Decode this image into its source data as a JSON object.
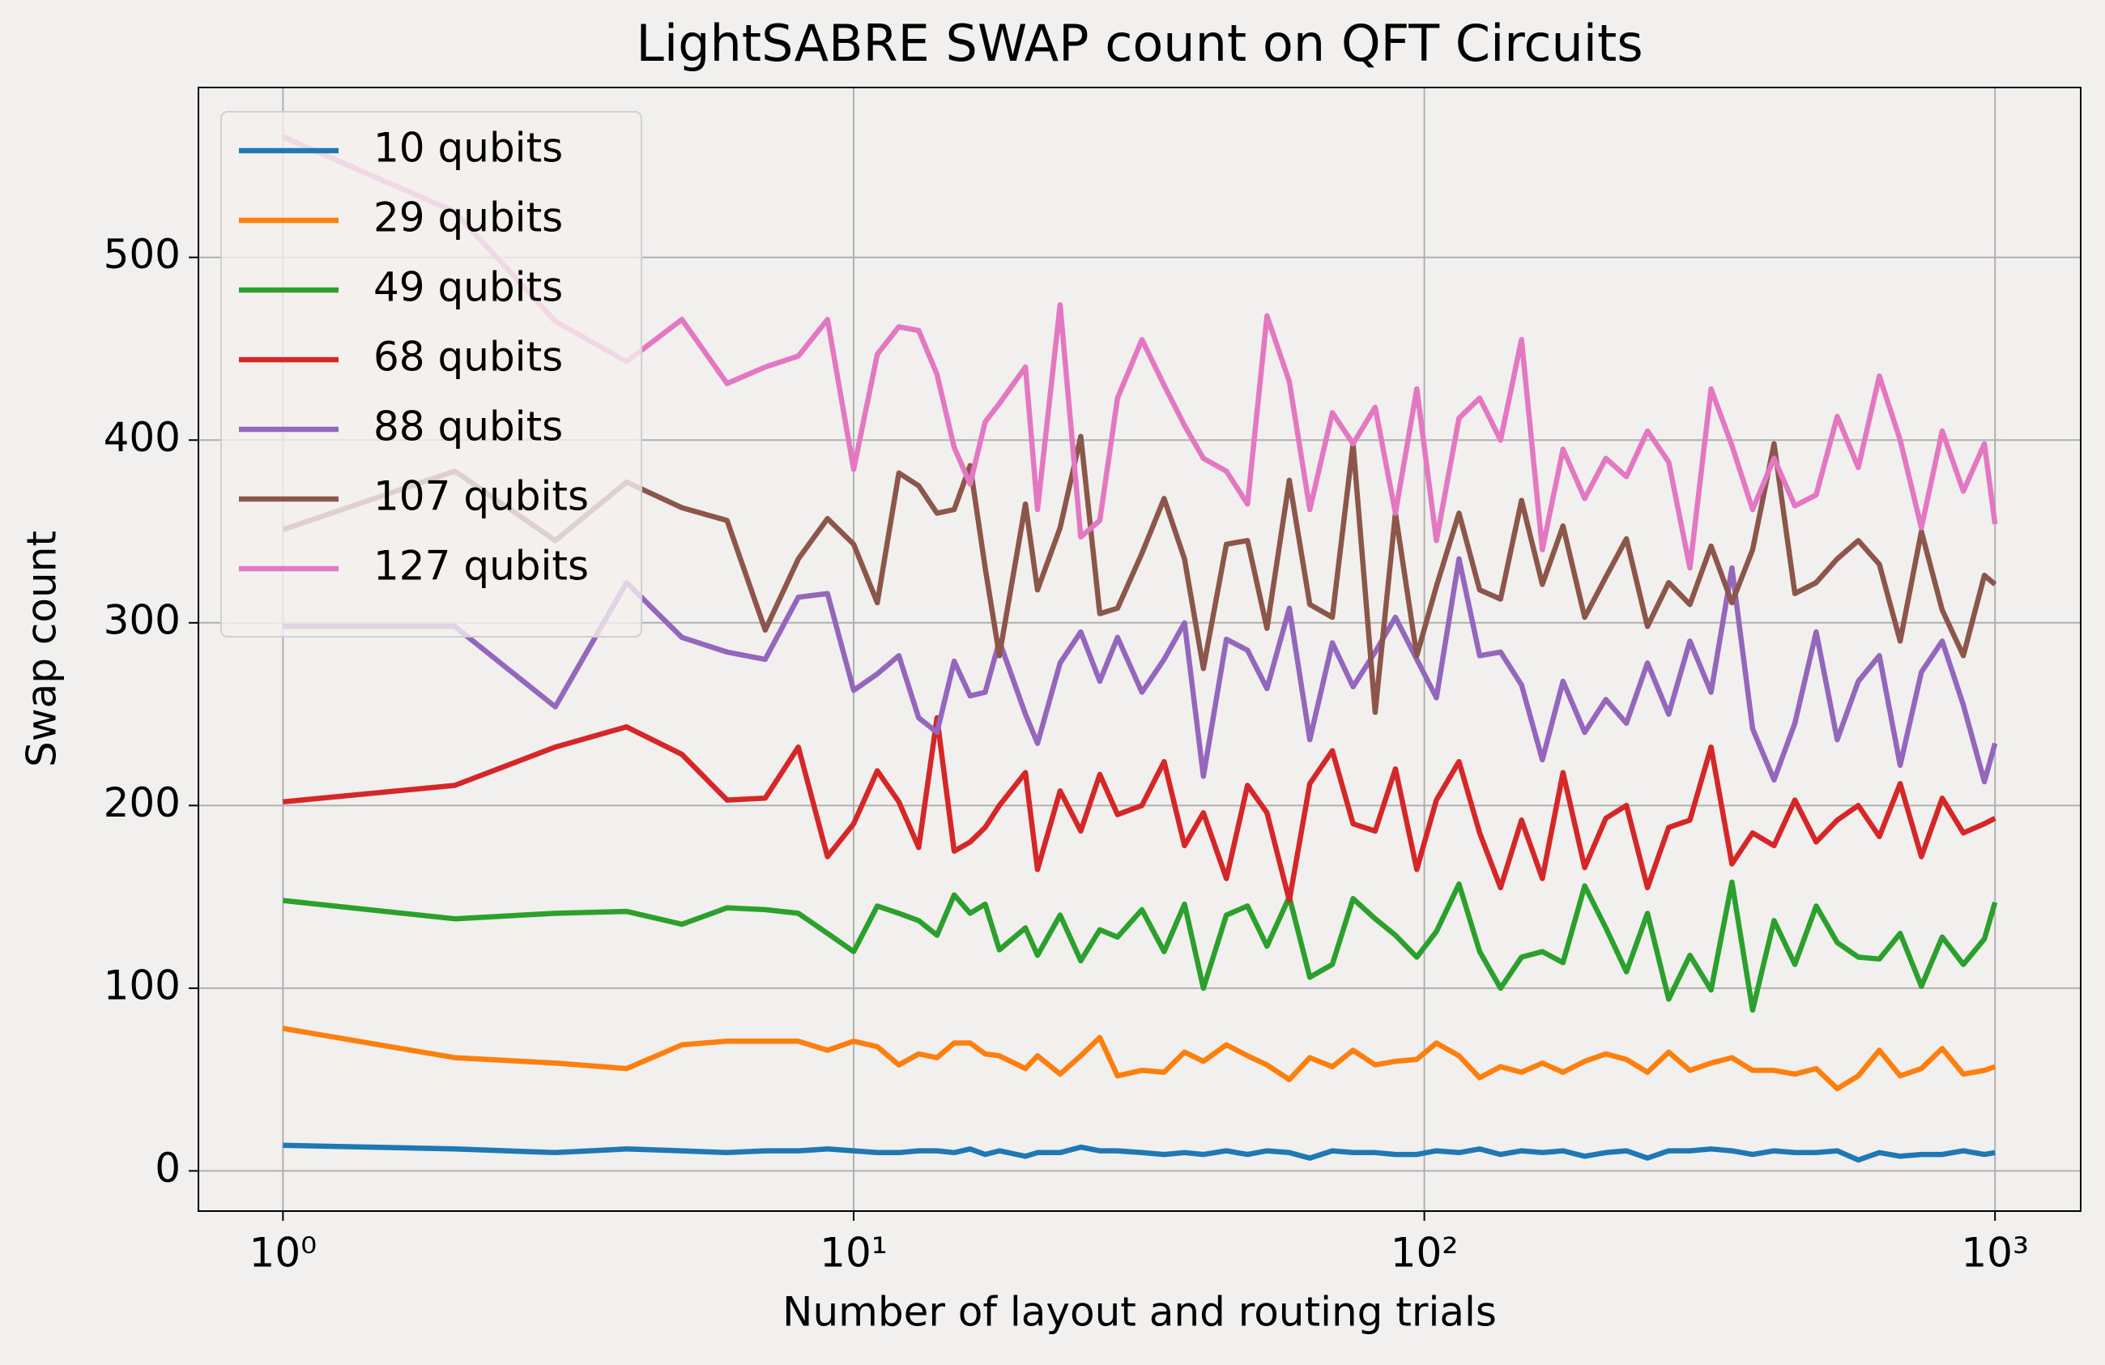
{
  "chart_data": {
    "type": "line",
    "title": "LightSABRE SWAP count on QFT Circuits",
    "x_label": "Number of layout and routing trials",
    "y_label": "Swap count",
    "x": [
      1,
      2,
      3,
      4,
      5,
      6,
      7,
      8,
      9,
      10,
      11,
      12,
      13,
      14,
      15,
      16,
      17,
      18,
      20,
      21,
      23,
      25,
      27,
      29,
      32,
      35,
      38,
      41,
      45,
      49,
      53,
      58,
      63,
      69,
      75,
      82,
      89,
      97,
      105,
      115,
      125,
      136,
      148,
      161,
      175,
      191,
      208,
      226,
      246,
      268,
      292,
      318,
      346,
      376,
      410,
      446,
      486,
      529,
      576,
      627,
      682,
      743,
      808,
      880,
      958,
      1000
    ],
    "series": [
      {
        "name": "10 qubits",
        "color": "#1f77b4",
        "values": [
          14,
          12,
          10,
          12,
          11,
          10,
          11,
          11,
          12,
          11,
          10,
          10,
          11,
          11,
          10,
          12,
          9,
          11,
          8,
          10,
          10,
          13,
          11,
          11,
          10,
          9,
          10,
          9,
          11,
          9,
          11,
          10,
          7,
          11,
          10,
          10,
          9,
          9,
          11,
          10,
          12,
          9,
          11,
          10,
          11,
          8,
          10,
          11,
          7,
          11,
          11,
          12,
          11,
          9,
          11,
          10,
          10,
          11,
          6,
          10,
          8,
          9,
          9,
          11,
          9,
          10
        ]
      },
      {
        "name": "29 qubits",
        "color": "#ff7f0e",
        "values": [
          78,
          62,
          59,
          56,
          69,
          71,
          71,
          71,
          66,
          71,
          68,
          58,
          64,
          62,
          70,
          70,
          64,
          63,
          56,
          63,
          53,
          63,
          73,
          52,
          55,
          54,
          65,
          60,
          69,
          63,
          58,
          50,
          62,
          57,
          66,
          58,
          60,
          61,
          70,
          63,
          51,
          57,
          54,
          59,
          54,
          60,
          64,
          61,
          54,
          65,
          55,
          59,
          62,
          55,
          55,
          53,
          56,
          45,
          52,
          66,
          52,
          56,
          67,
          53,
          55,
          57
        ]
      },
      {
        "name": "49 qubits",
        "color": "#2ca02c",
        "values": [
          148,
          138,
          141,
          142,
          135,
          144,
          143,
          141,
          130,
          120,
          145,
          141,
          137,
          129,
          151,
          141,
          146,
          121,
          133,
          118,
          140,
          115,
          132,
          128,
          143,
          120,
          146,
          100,
          140,
          145,
          123,
          150,
          106,
          113,
          149,
          138,
          129,
          117,
          131,
          157,
          120,
          100,
          117,
          120,
          114,
          156,
          133,
          109,
          141,
          94,
          118,
          99,
          158,
          88,
          137,
          113,
          145,
          125,
          117,
          116,
          130,
          101,
          128,
          113,
          127,
          147
        ]
      },
      {
        "name": "68 qubits",
        "color": "#d62728",
        "values": [
          202,
          211,
          232,
          243,
          228,
          203,
          204,
          232,
          172,
          190,
          219,
          202,
          177,
          248,
          175,
          180,
          188,
          200,
          218,
          165,
          208,
          186,
          217,
          195,
          200,
          224,
          178,
          196,
          160,
          211,
          196,
          148,
          212,
          230,
          190,
          186,
          220,
          165,
          203,
          224,
          185,
          155,
          192,
          160,
          218,
          166,
          193,
          200,
          155,
          188,
          192,
          232,
          168,
          185,
          178,
          203,
          180,
          192,
          200,
          183,
          212,
          172,
          204,
          185,
          190,
          193
        ]
      },
      {
        "name": "88 qubits",
        "color": "#9467bd",
        "values": [
          298,
          298,
          254,
          322,
          292,
          284,
          280,
          314,
          316,
          263,
          272,
          282,
          248,
          240,
          279,
          260,
          262,
          290,
          250,
          234,
          278,
          295,
          268,
          292,
          262,
          280,
          300,
          216,
          291,
          285,
          264,
          308,
          236,
          289,
          265,
          284,
          303,
          280,
          259,
          335,
          282,
          284,
          266,
          225,
          268,
          240,
          258,
          245,
          278,
          250,
          290,
          262,
          330,
          242,
          214,
          245,
          295,
          236,
          268,
          282,
          222,
          273,
          290,
          255,
          213,
          234
        ]
      },
      {
        "name": "107 qubits",
        "color": "#8c564b",
        "values": [
          351,
          383,
          345,
          377,
          363,
          356,
          296,
          335,
          357,
          343,
          311,
          382,
          375,
          360,
          362,
          386,
          330,
          282,
          365,
          318,
          352,
          402,
          305,
          308,
          338,
          368,
          335,
          275,
          343,
          345,
          297,
          378,
          310,
          303,
          398,
          251,
          360,
          282,
          320,
          360,
          318,
          313,
          367,
          321,
          353,
          303,
          325,
          346,
          298,
          322,
          310,
          342,
          311,
          340,
          398,
          316,
          322,
          335,
          345,
          332,
          290,
          350,
          307,
          282,
          326,
          321
        ]
      },
      {
        "name": "127 qubits",
        "color": "#e377c2",
        "values": [
          566,
          525,
          465,
          443,
          466,
          431,
          440,
          446,
          466,
          384,
          447,
          462,
          460,
          436,
          396,
          376,
          410,
          420,
          440,
          362,
          474,
          347,
          356,
          423,
          455,
          430,
          408,
          390,
          383,
          365,
          468,
          432,
          362,
          415,
          398,
          418,
          360,
          428,
          345,
          412,
          423,
          400,
          455,
          340,
          395,
          368,
          390,
          380,
          405,
          388,
          330,
          428,
          397,
          362,
          390,
          364,
          370,
          413,
          385,
          435,
          400,
          352,
          405,
          372,
          398,
          354
        ]
      }
    ],
    "xscale": "log",
    "xlim": [
      0.711,
      1413
    ],
    "xticks": [
      {
        "value": 1,
        "label": "10⁰"
      },
      {
        "value": 10,
        "label": "10¹"
      },
      {
        "value": 100,
        "label": "10²"
      },
      {
        "value": 1000,
        "label": "10³"
      }
    ],
    "ylim": [
      -22,
      593
    ],
    "yticks": [
      0,
      100,
      200,
      300,
      400,
      500
    ],
    "grid": true,
    "legend": "upper left"
  }
}
